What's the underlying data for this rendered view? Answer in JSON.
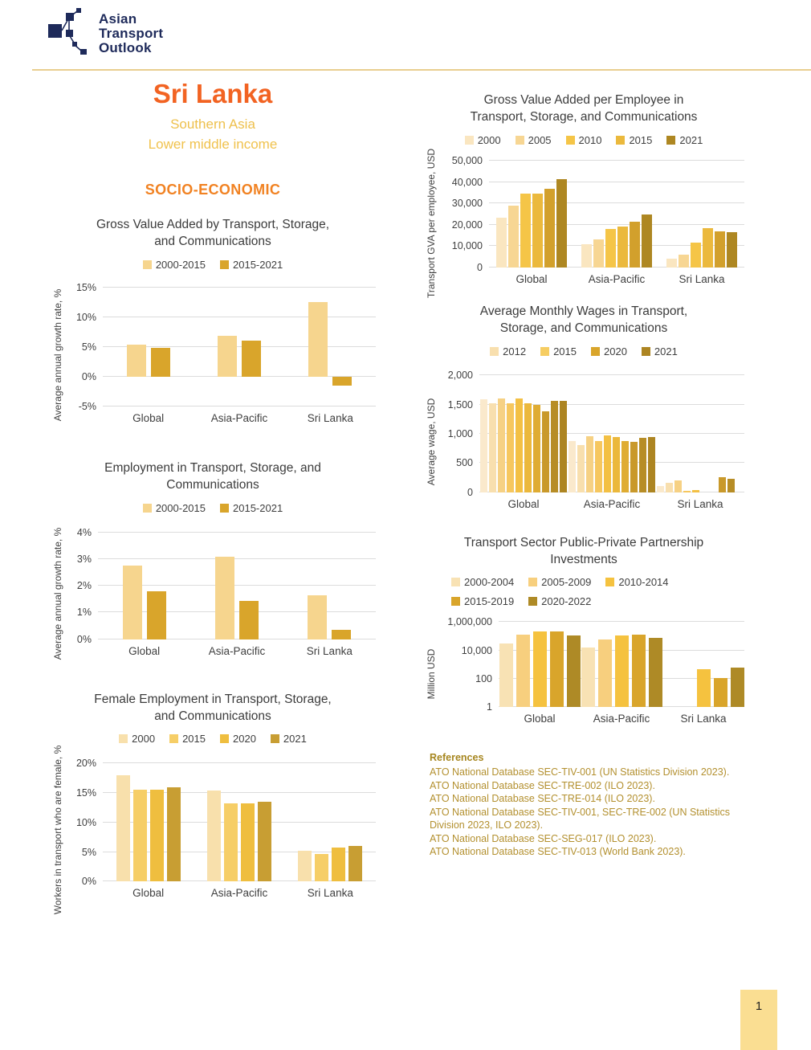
{
  "header": {
    "logo_lines": [
      "Asian",
      "Transport",
      "Outlook"
    ]
  },
  "country_panel": {
    "name": "Sri Lanka",
    "region": "Southern Asia",
    "income": "Lower middle income",
    "section": "SOCIO-ECONOMIC"
  },
  "colors": {
    "accent_orange": "#f26322",
    "accent_gold": "#eec04d",
    "logo_navy": "#1e2a5a",
    "reference_text": "#b3902f",
    "page_tile": "#fade92"
  },
  "chart_data": [
    {
      "key": "c1",
      "type": "bar",
      "title_lines": [
        "Gross Value Added by Transport, Storage,",
        "and Communications"
      ],
      "y_label": "Average annual growth rate, %",
      "legend": [
        {
          "label": "2000-2015",
          "color": "#f6d58e"
        },
        {
          "label": "2015-2021",
          "color": "#d9a52b"
        }
      ],
      "bar_colors": [
        "#f6d58e",
        "#d9a52b"
      ],
      "scale": {
        "kind": "linear",
        "vmin": -5,
        "vmax": 16.2,
        "ticks": [
          {
            "v": 15,
            "label": "15%"
          },
          {
            "v": 10,
            "label": "10%"
          },
          {
            "v": 5,
            "label": "5%"
          },
          {
            "v": 0,
            "label": "0%"
          },
          {
            "v": -5,
            "label": "-5%"
          }
        ]
      },
      "categories": [
        "Global",
        "Asia-Pacific",
        "Sri Lanka"
      ],
      "groups": [
        {
          "category": "Global",
          "values": [
            5.4,
            4.8
          ]
        },
        {
          "category": "Asia-Pacific",
          "values": [
            6.9,
            6.1
          ]
        },
        {
          "category": "Sri Lanka",
          "values": [
            12.5,
            -1.5
          ]
        }
      ]
    },
    {
      "key": "c2",
      "type": "bar",
      "title_lines": [
        "Employment in Transport, Storage, and",
        "Communications"
      ],
      "y_label": "Average annual growth rate, %",
      "legend": [
        {
          "label": "2000-2015",
          "color": "#f6d58e"
        },
        {
          "label": "2015-2021",
          "color": "#d9a52b"
        }
      ],
      "bar_colors": [
        "#f6d58e",
        "#d9a52b"
      ],
      "scale": {
        "kind": "linear",
        "vmin": 0,
        "vmax": 4.35,
        "ticks": [
          {
            "v": 4,
            "label": "4%"
          },
          {
            "v": 3,
            "label": "3%"
          },
          {
            "v": 2,
            "label": "2%"
          },
          {
            "v": 1,
            "label": "1%"
          },
          {
            "v": 0,
            "label": "0%"
          }
        ]
      },
      "categories": [
        "Global",
        "Asia-Pacific",
        "Sri Lanka"
      ],
      "groups": [
        {
          "category": "Global",
          "values": [
            2.75,
            1.8
          ]
        },
        {
          "category": "Asia-Pacific",
          "values": [
            3.1,
            1.45
          ]
        },
        {
          "category": "Sri Lanka",
          "values": [
            1.65,
            0.35
          ]
        }
      ]
    },
    {
      "key": "c3",
      "type": "bar",
      "title_lines": [
        "Female Employment in Transport, Storage,",
        "and Communications"
      ],
      "y_label": "Workers in transport who are female, %",
      "legend": [
        {
          "label": "2000",
          "color": "#f8e0ac"
        },
        {
          "label": "2015",
          "color": "#f6ce67"
        },
        {
          "label": "2020",
          "color": "#efbe3f"
        },
        {
          "label": "2021",
          "color": "#c89e33"
        }
      ],
      "bar_colors": [
        "#f8e0ac",
        "#f6ce67",
        "#efbe3f",
        "#c89e33"
      ],
      "scale": {
        "kind": "linear",
        "vmin": 0,
        "vmax": 21.5,
        "ticks": [
          {
            "v": 20,
            "label": "20%"
          },
          {
            "v": 15,
            "label": "15%"
          },
          {
            "v": 10,
            "label": "10%"
          },
          {
            "v": 5,
            "label": "5%"
          },
          {
            "v": 0,
            "label": "0%"
          }
        ]
      },
      "categories": [
        "Global",
        "Asia-Pacific",
        "Sri Lanka"
      ],
      "groups": [
        {
          "category": "Global",
          "values": [
            18.0,
            15.6,
            15.5,
            16.0
          ]
        },
        {
          "category": "Asia-Pacific",
          "values": [
            15.4,
            13.2,
            13.2,
            13.5
          ]
        },
        {
          "category": "Sri Lanka",
          "values": [
            5.2,
            4.6,
            5.8,
            6.0
          ]
        }
      ]
    },
    {
      "key": "c4",
      "type": "bar",
      "title_lines": [
        "Gross Value Added per Employee in",
        "Transport, Storage, and Communications"
      ],
      "y_label": "Transport GVA per employee, USD",
      "legend": [
        {
          "label": "2000",
          "color": "#fae6c0"
        },
        {
          "label": "2005",
          "color": "#f7d693"
        },
        {
          "label": "2010",
          "color": "#f5c547"
        },
        {
          "label": "2015",
          "color": "#ebb93d"
        },
        {
          "label": "2021",
          "color": "#ae8722"
        }
      ],
      "bar_colors": [
        "#fae6c0",
        "#f7d693",
        "#f5c547",
        "#ebb93d",
        "#d2a02c",
        "#ae8722"
      ],
      "scale": {
        "kind": "linear",
        "vmin": 0,
        "vmax": 52500,
        "ticks": [
          {
            "v": 50000,
            "label": "50,000"
          },
          {
            "v": 40000,
            "label": "40,000"
          },
          {
            "v": 30000,
            "label": "30,000"
          },
          {
            "v": 20000,
            "label": "20,000"
          },
          {
            "v": 10000,
            "label": "10,000"
          },
          {
            "v": 0,
            "label": "0"
          }
        ]
      },
      "categories": [
        "Global",
        "Asia-Pacific",
        "Sri Lanka"
      ],
      "groups": [
        {
          "category": "Global",
          "values": [
            23500,
            29000,
            34500,
            34800,
            37000,
            41500
          ]
        },
        {
          "category": "Asia-Pacific",
          "values": [
            11000,
            13000,
            18000,
            19200,
            21500,
            25000
          ]
        },
        {
          "category": "Sri Lanka",
          "values": [
            4000,
            6000,
            11500,
            18500,
            17000,
            16500
          ]
        }
      ]
    },
    {
      "key": "c5",
      "type": "bar",
      "title_lines": [
        "Average Monthly Wages in Transport,",
        "Storage, and Communications"
      ],
      "y_label": "Average wage, USD",
      "legend": [
        {
          "label": "2012",
          "color": "#f8dfae"
        },
        {
          "label": "2015",
          "color": "#f6cd62"
        },
        {
          "label": "2020",
          "color": "#d9a52b"
        },
        {
          "label": "2021",
          "color": "#ad8522"
        }
      ],
      "bar_colors": [
        "#fae9cc",
        "#f8dfae",
        "#f6d184",
        "#f6c75f",
        "#f3c044",
        "#ebb83c",
        "#dfac33",
        "#c9992b",
        "#b78d26",
        "#ad8522"
      ],
      "scale": {
        "kind": "linear",
        "vmin": 0,
        "vmax": 2150,
        "ticks": [
          {
            "v": 2000,
            "label": "2,000"
          },
          {
            "v": 1500,
            "label": "1,500"
          },
          {
            "v": 1000,
            "label": "1,000"
          },
          {
            "v": 500,
            "label": "500"
          },
          {
            "v": 0,
            "label": "0"
          }
        ]
      },
      "categories": [
        "Global",
        "Asia-Pacific",
        "Sri Lanka"
      ],
      "groups": [
        {
          "category": "Global",
          "values": [
            1590,
            1520,
            1610,
            1530,
            1600,
            1530,
            1500,
            1390,
            1570,
            1570
          ]
        },
        {
          "category": "Asia-Pacific",
          "values": [
            880,
            810,
            960,
            875,
            975,
            940,
            880,
            865,
            935,
            950
          ]
        },
        {
          "category": "Sri Lanka",
          "values": [
            105,
            165,
            195,
            25,
            35,
            0,
            0,
            250,
            225,
            0
          ]
        }
      ]
    },
    {
      "key": "c6",
      "type": "bar",
      "title_lines": [
        "Transport Sector Public-Private Partnership",
        "Investments"
      ],
      "y_label": "Million USD",
      "legend": [
        {
          "label": "2000-2004",
          "color": "#f8e2b4"
        },
        {
          "label": "2005-2009",
          "color": "#f7cf7e"
        },
        {
          "label": "2010-2014",
          "color": "#f5c23f"
        },
        {
          "label": "2015-2019",
          "color": "#d9a52b"
        },
        {
          "label": "2020-2022",
          "color": "#ae8a26"
        }
      ],
      "bar_colors": [
        "#f8e2b4",
        "#f7cf7e",
        "#f5c23f",
        "#d9a52b",
        "#ae8a26"
      ],
      "scale": {
        "kind": "log",
        "logmax": 6.35,
        "ticks": [
          {
            "v": 1000000,
            "label": "1,000,000"
          },
          {
            "v": 10000,
            "label": "10,000"
          },
          {
            "v": 100,
            "label": "100"
          },
          {
            "v": 1,
            "label": "1"
          }
        ]
      },
      "categories": [
        "Global",
        "Asia-Pacific",
        "Sri Lanka"
      ],
      "groups": [
        {
          "category": "Global",
          "values": [
            30000,
            130000,
            220000,
            210000,
            120000
          ]
        },
        {
          "category": "Asia-Pacific",
          "values": [
            17000,
            60000,
            110000,
            130000,
            80000
          ]
        },
        {
          "category": "Sri Lanka",
          "values": [
            0,
            0,
            500,
            110,
            650
          ]
        }
      ]
    }
  ],
  "references": {
    "title": "References",
    "items": [
      "ATO National Database SEC-TIV-001 (UN Statistics Division 2023).",
      "ATO National Database SEC-TRE-002 (ILO 2023).",
      "ATO National Database SEC-TRE-014 (ILO 2023).",
      "ATO National Database SEC-TIV-001, SEC-TRE-002 (UN Statistics Division 2023, ILO 2023).",
      "ATO National Database SEC-SEG-017 (ILO 2023).",
      "ATO National Database SEC-TIV-013 (World Bank 2023)."
    ]
  },
  "page_number": "1"
}
